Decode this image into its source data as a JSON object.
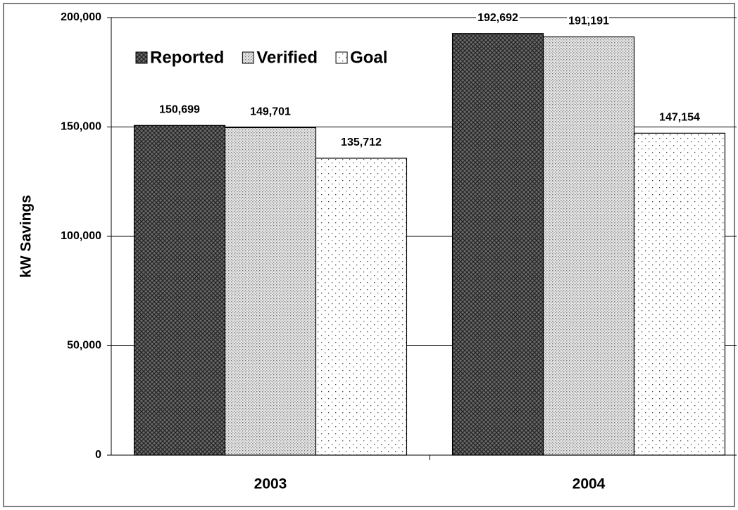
{
  "chart_data": {
    "type": "bar",
    "y_label": "kW Savings",
    "categories": [
      "2003",
      "2004"
    ],
    "series": [
      {
        "name": "Reported",
        "color": "#555555",
        "values": [
          150699,
          192692
        ],
        "value_labels": [
          "150,699",
          "192,692"
        ]
      },
      {
        "name": "Verified",
        "color": "#cccccc",
        "values": [
          149701,
          191191
        ],
        "value_labels": [
          "149,701",
          "191,191"
        ]
      },
      {
        "name": "Goal",
        "color": "#ffffff",
        "values": [
          135712,
          147154
        ],
        "value_labels": [
          "135,712",
          "147,154"
        ]
      }
    ],
    "ylim": [
      0,
      200000
    ],
    "yticks": [
      {
        "value": 0,
        "label": "0"
      },
      {
        "value": 50000,
        "label": "50,000"
      },
      {
        "value": 100000,
        "label": "100,000"
      },
      {
        "value": 150000,
        "label": "150,000"
      },
      {
        "value": 200000,
        "label": "200,000"
      }
    ],
    "grid": true,
    "legend": "top-left"
  }
}
